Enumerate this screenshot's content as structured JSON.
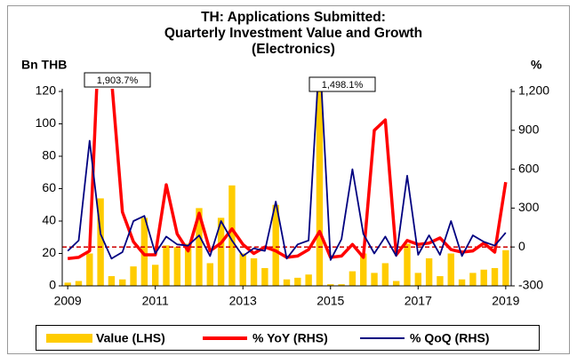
{
  "chart_data": {
    "type": "combo",
    "title": [
      "TH: Applications Submitted:",
      "Quarterly Investment Value and Growth",
      "(Electronics)"
    ],
    "ylabel": "Bn THB",
    "y2label": "%",
    "categories": [
      "2009",
      null,
      null,
      null,
      null,
      null,
      null,
      null,
      "2011",
      null,
      null,
      null,
      null,
      null,
      null,
      null,
      "2013",
      null,
      null,
      null,
      null,
      null,
      null,
      null,
      "2015",
      null,
      null,
      null,
      null,
      null,
      null,
      null,
      "2017",
      null,
      null,
      null,
      null,
      null,
      null,
      null,
      "2019"
    ],
    "series": [
      {
        "name": "Value (LHS)",
        "type": "bar",
        "color": "#FFCC00",
        "values": [
          2,
          3,
          20,
          54,
          6,
          4,
          12,
          42,
          13,
          25,
          24,
          26,
          48,
          14,
          42,
          62,
          20,
          17,
          11,
          50,
          4,
          5,
          7,
          120,
          1,
          1,
          9,
          20,
          8,
          14,
          3,
          26,
          8,
          17,
          6,
          20,
          4,
          8,
          10,
          11,
          22
        ]
      },
      {
        "name": "% YoY (RHS)",
        "type": "line",
        "axis": "y2",
        "color": "#FF0000",
        "values": [
          -90,
          -80,
          -30,
          1903.7,
          1300,
          270,
          40,
          -60,
          -60,
          480,
          100,
          -30,
          260,
          -30,
          30,
          140,
          20,
          -50,
          0,
          -30,
          -80,
          -70,
          -20,
          120,
          -80,
          -70,
          20,
          -80,
          900,
          980,
          -60,
          50,
          20,
          30,
          70,
          -20,
          -40,
          -30,
          30,
          -40,
          500
        ]
      },
      {
        "name": "% QoQ (RHS)",
        "type": "line",
        "axis": "y2",
        "color": "#000080",
        "values": [
          -30,
          50,
          820,
          100,
          -90,
          -40,
          200,
          240,
          -50,
          80,
          20,
          10,
          90,
          -70,
          200,
          50,
          -70,
          -10,
          -30,
          350,
          -90,
          20,
          50,
          1498.1,
          -100,
          60,
          600,
          100,
          -50,
          80,
          -70,
          550,
          -60,
          90,
          -60,
          200,
          -70,
          90,
          40,
          10,
          110
        ]
      }
    ],
    "annotations": [
      "1,903.7%",
      "1,498.1%"
    ],
    "ref_line": {
      "axis": "y2",
      "value": 0,
      "color": "#CC0000"
    },
    "ylim": [
      0,
      120
    ],
    "yticks": [
      0,
      20,
      40,
      60,
      80,
      100,
      120
    ],
    "y2lim": [
      -300,
      1200
    ],
    "y2ticks": [
      -300,
      0,
      300,
      600,
      900,
      {
        "value": 1200,
        "label": "1,200"
      }
    ],
    "legend": "bottom"
  }
}
